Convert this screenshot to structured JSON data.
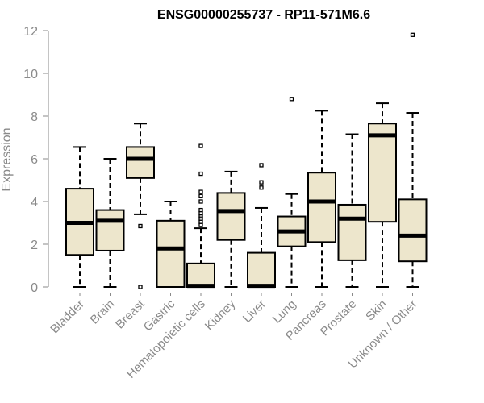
{
  "chart_data": {
    "type": "boxplot",
    "title": "ENSG00000255737 - RP11-571M6.6",
    "xlabel": "",
    "ylabel": "Expression",
    "ylim": [
      0,
      12
    ],
    "yticks": [
      0,
      2,
      4,
      6,
      8,
      10,
      12
    ],
    "grid": false,
    "legend": "none",
    "colors": {
      "box_fill": "#ede6cc",
      "stroke": "#000000",
      "axis": "#8a8a8a",
      "title": "#000000"
    },
    "categories": [
      "Bladder",
      "Brain",
      "Breast",
      "Gastric",
      "Hematopoietic cells",
      "Kidney",
      "Liver",
      "Lung",
      "Pancreas",
      "Prostate",
      "Skin",
      "Unknown / Other"
    ],
    "boxes": [
      {
        "min": 0,
        "q1": 1.5,
        "median": 3.0,
        "q3": 4.6,
        "max": 6.55,
        "outliers": []
      },
      {
        "min": 0,
        "q1": 1.7,
        "median": 3.1,
        "q3": 3.6,
        "max": 6.0,
        "outliers": []
      },
      {
        "min": 3.4,
        "q1": 5.1,
        "median": 6.0,
        "q3": 6.55,
        "max": 7.65,
        "outliers": [
          2.85,
          0
        ]
      },
      {
        "min": 0,
        "q1": 0,
        "median": 1.8,
        "q3": 3.1,
        "max": 4.0,
        "outliers": []
      },
      {
        "min": 0,
        "q1": 0,
        "median": 0.05,
        "q3": 1.1,
        "max": 2.75,
        "outliers": [
          2.9,
          3.05,
          3.2,
          3.3,
          3.45,
          3.6,
          4.0,
          4.25,
          4.45,
          5.3,
          6.6
        ]
      },
      {
        "min": 0,
        "q1": 2.2,
        "median": 3.55,
        "q3": 4.4,
        "max": 5.4,
        "outliers": []
      },
      {
        "min": 0,
        "q1": 0,
        "median": 0.05,
        "q3": 1.6,
        "max": 3.7,
        "outliers": [
          4.65,
          4.9,
          5.7
        ]
      },
      {
        "min": 0,
        "q1": 1.9,
        "median": 2.6,
        "q3": 3.3,
        "max": 4.35,
        "outliers": [
          8.8
        ]
      },
      {
        "min": 0,
        "q1": 2.1,
        "median": 4.0,
        "q3": 5.35,
        "max": 8.25,
        "outliers": []
      },
      {
        "min": 0,
        "q1": 1.25,
        "median": 3.2,
        "q3": 3.85,
        "max": 7.15,
        "outliers": []
      },
      {
        "min": 0,
        "q1": 3.05,
        "median": 7.1,
        "q3": 7.65,
        "max": 8.6,
        "outliers": []
      },
      {
        "min": 0,
        "q1": 1.2,
        "median": 2.4,
        "q3": 4.1,
        "max": 8.15,
        "outliers": [
          11.8
        ]
      }
    ]
  }
}
